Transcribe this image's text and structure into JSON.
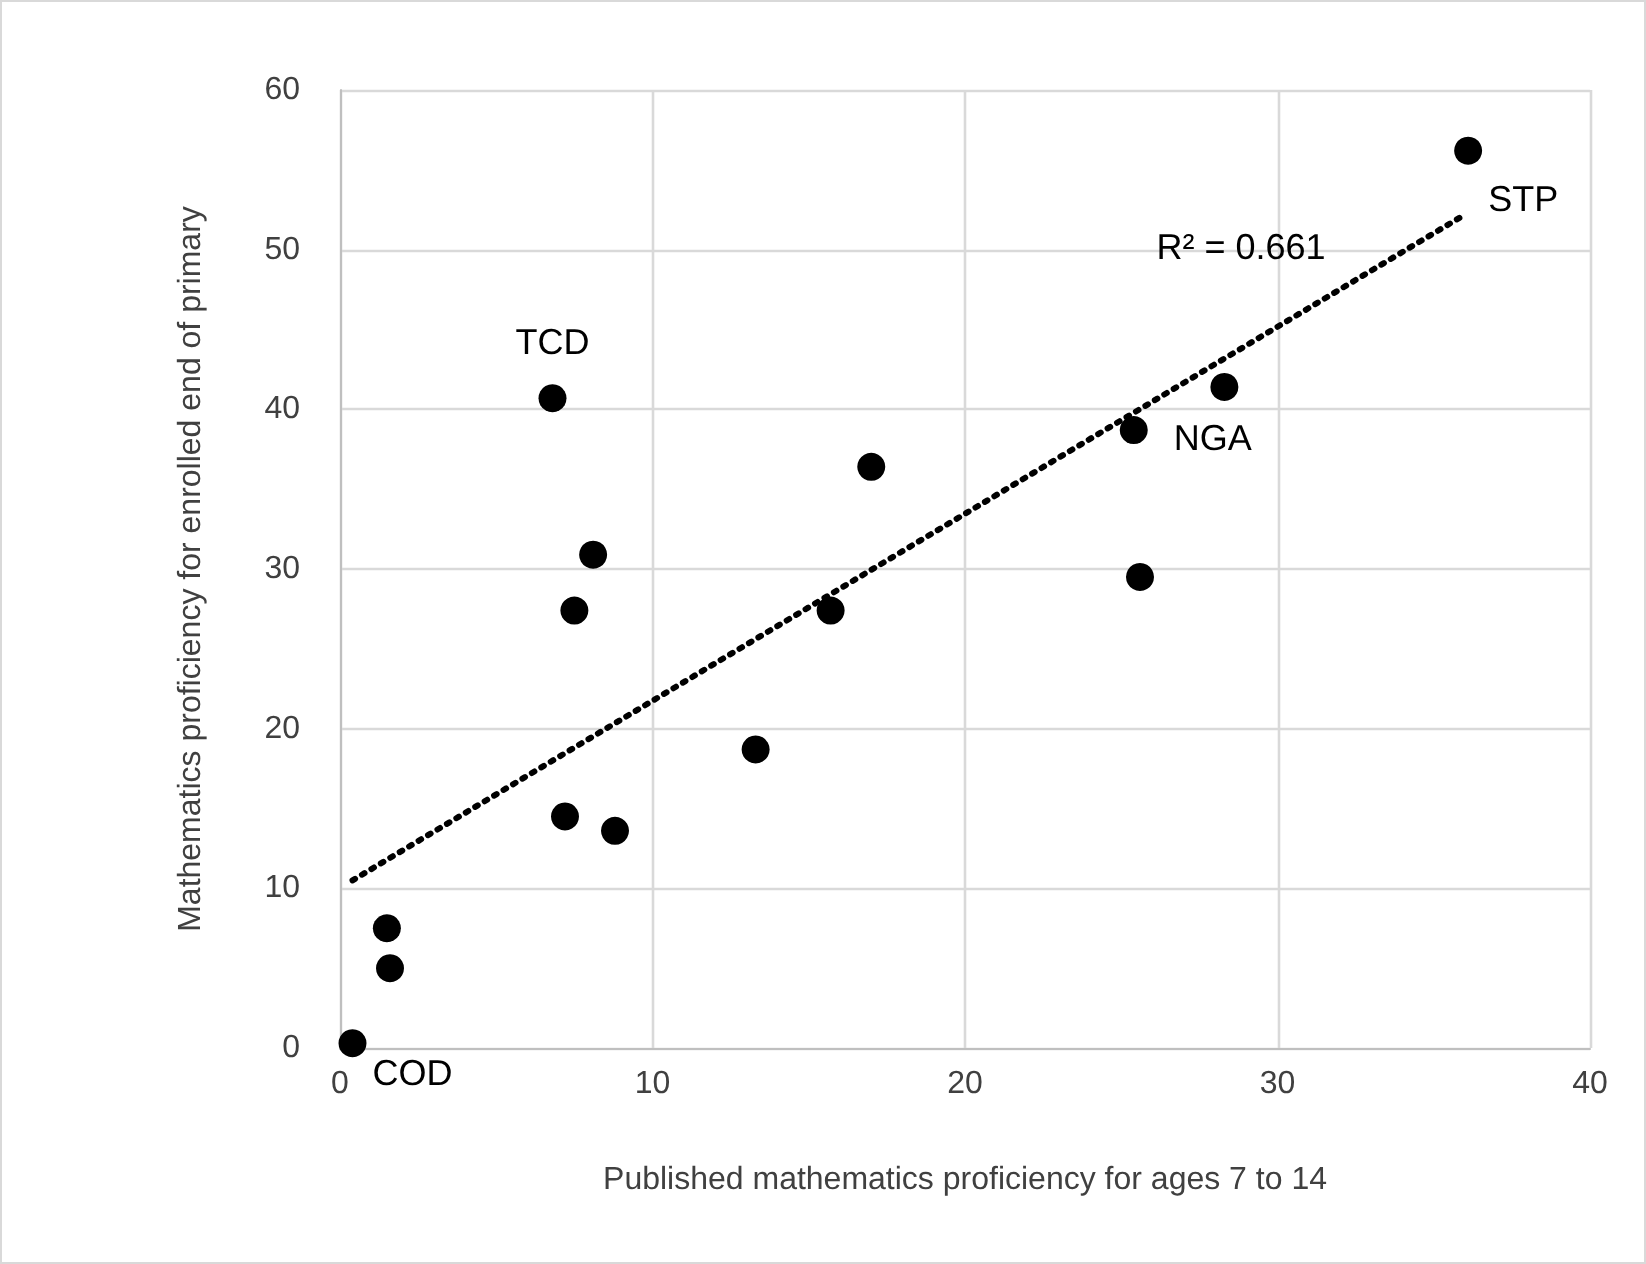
{
  "chart_data": {
    "type": "scatter",
    "xlabel": "Published mathematics proficiency for ages 7 to 14",
    "ylabel": "Mathematics proficiency for enrolled end of primary",
    "xlim": [
      0,
      40
    ],
    "xticks": [
      0,
      10,
      20,
      30,
      40
    ],
    "ylim": [
      0,
      60
    ],
    "yticks": [
      0,
      10,
      20,
      30,
      40,
      50,
      60
    ],
    "grid": true,
    "marker": "circle",
    "series": [
      {
        "color": "#000000",
        "x": [
          0.4,
          1.5,
          1.6,
          6.8,
          7.2,
          7.5,
          8.1,
          8.8,
          13.3,
          15.7,
          17.0,
          25.4,
          25.6,
          28.3,
          36.1
        ],
        "values": [
          0.3,
          7.5,
          5.0,
          40.7,
          14.5,
          27.4,
          30.9,
          13.6,
          18.7,
          27.4,
          36.4,
          38.7,
          29.5,
          41.4,
          56.2
        ]
      },
      {
        "type": "line",
        "color": "#000000",
        "line_style": "dotted",
        "marker": "none",
        "x": [
          0.4,
          36.0
        ],
        "values": [
          10.5,
          52.2
        ]
      }
    ],
    "annotations": [
      {
        "text": "TCD",
        "x": 6.8,
        "y": 40.7
      },
      {
        "text": "COD",
        "x": 0.4,
        "y": 0.3
      },
      {
        "text": "NGA",
        "x": 25.4,
        "y": 38.7
      },
      {
        "text": "STP",
        "x": 36.1,
        "y": 56.2
      },
      "R² = 0.661"
    ]
  }
}
